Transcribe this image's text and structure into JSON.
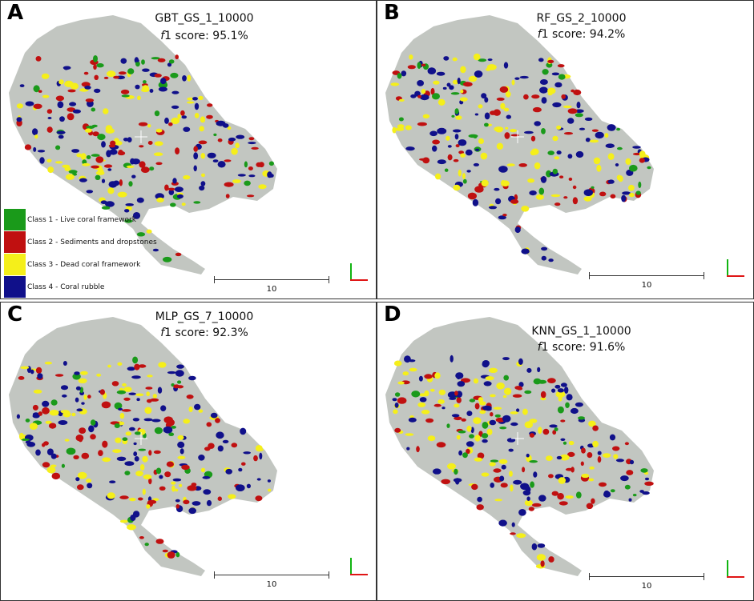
{
  "colors": {
    "class1": "#1a9a1a",
    "class2": "#c01010",
    "class3": "#f5ef1a",
    "class4": "#10108a",
    "terrain": "#c2c6c1"
  },
  "panels": [
    {
      "letter": "A",
      "model": "GBT_GS_1_10000",
      "score_label": "f",
      "score_suffix": "1 score: 95.1%",
      "scale": "10"
    },
    {
      "letter": "B",
      "model": "RF_GS_2_10000",
      "score_label": "f",
      "score_suffix": "1 score: 94.2%",
      "scale": "10"
    },
    {
      "letter": "C",
      "model": "MLP_GS_7_10000",
      "score_label": "f",
      "score_suffix": "1 score: 92.3%",
      "scale": "10"
    },
    {
      "letter": "D",
      "model": "KNN_GS_1_10000",
      "score_label": "f",
      "score_suffix": "1 score: 91.6%",
      "scale": "10"
    }
  ],
  "legend": [
    {
      "label": "Class 1 - Live coral framework",
      "color_key": "class1"
    },
    {
      "label": "Class 2 - Sediments and dropstones",
      "color_key": "class2"
    },
    {
      "label": "Class 3 - Dead coral framework",
      "color_key": "class3"
    },
    {
      "label": "Class 4 - Coral rubble",
      "color_key": "class4"
    }
  ]
}
